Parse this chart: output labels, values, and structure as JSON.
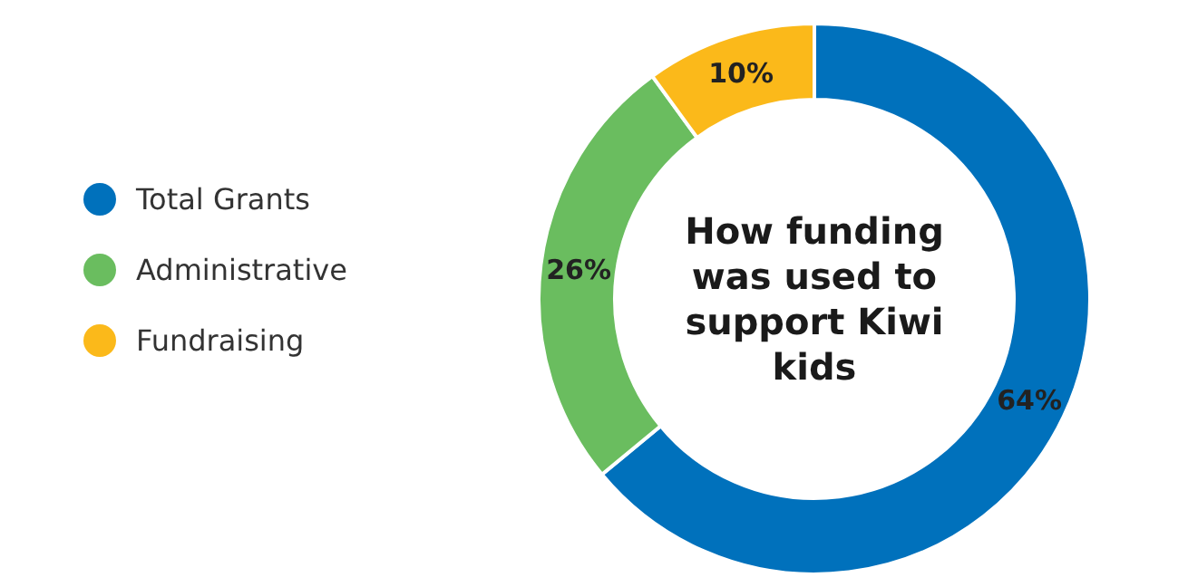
{
  "chart_data": {
    "type": "donut",
    "title": "How funding was used to support Kiwi kids",
    "categories": [
      "Total Grants",
      "Administrative",
      "Fundraising"
    ],
    "values": [
      64,
      26,
      10
    ],
    "colors": [
      "#0071bc",
      "#6abd5f",
      "#fbb91a"
    ],
    "value_labels": [
      "64%",
      "26%",
      "10%"
    ],
    "legend": "left"
  }
}
